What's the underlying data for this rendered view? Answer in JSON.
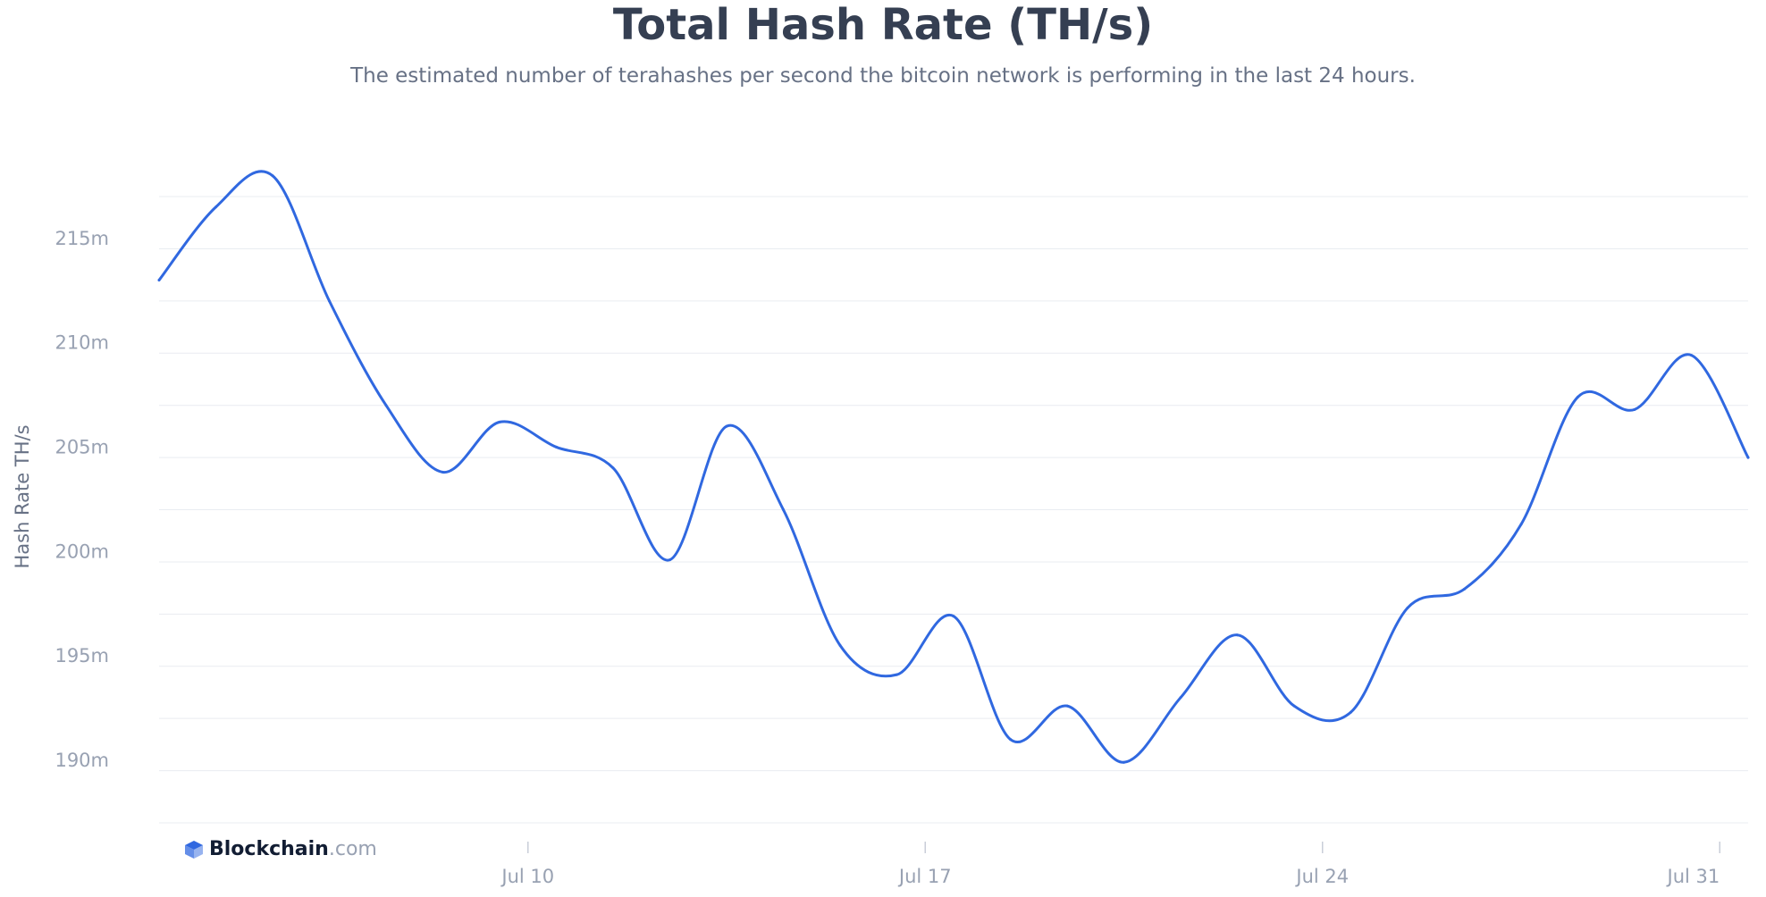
{
  "chart_data": {
    "type": "line",
    "title": "Total Hash Rate (TH/s)",
    "subtitle": "The estimated number of terahashes per second the bitcoin network is performing in the last 24 hours.",
    "ylabel": "Hash Rate TH/s",
    "xlabel": "",
    "ylim": [
      187,
      218.8
    ],
    "y_ticks": [
      190,
      195,
      200,
      205,
      210,
      215
    ],
    "y_tick_labels": [
      "190m",
      "195m",
      "200m",
      "205m",
      "210m",
      "215m"
    ],
    "x_ticks": [
      "Jul 10",
      "Jul 17",
      "Jul 24",
      "Jul 31"
    ],
    "x_range_days": [
      "2020-07-03",
      "2020-07-31"
    ],
    "grid": true,
    "series": [
      {
        "name": "",
        "color": "#3068e0",
        "points": [
          [
            "2020-07-03T12:00",
            213.0
          ],
          [
            "2020-07-04T12:00",
            216.5
          ],
          [
            "2020-07-05T12:00",
            218.0
          ],
          [
            "2020-07-06T12:00",
            212.0
          ],
          [
            "2020-07-07T12:00",
            207.0
          ],
          [
            "2020-07-08T12:00",
            203.8
          ],
          [
            "2020-07-09T12:00",
            206.2
          ],
          [
            "2020-07-10T12:00",
            205.0
          ],
          [
            "2020-07-11T12:00",
            204.0
          ],
          [
            "2020-07-12T12:00",
            199.6
          ],
          [
            "2020-07-13T12:00",
            206.0
          ],
          [
            "2020-07-14T12:00",
            202.0
          ],
          [
            "2020-07-15T12:00",
            195.5
          ],
          [
            "2020-07-16T12:00",
            194.1
          ],
          [
            "2020-07-17T12:00",
            196.9
          ],
          [
            "2020-07-18T12:00",
            191.0
          ],
          [
            "2020-07-19T12:00",
            192.6
          ],
          [
            "2020-07-20T12:00",
            189.9
          ],
          [
            "2020-07-21T12:00",
            193.0
          ],
          [
            "2020-07-22T12:00",
            196.0
          ],
          [
            "2020-07-23T12:00",
            192.6
          ],
          [
            "2020-07-24T12:00",
            192.3
          ],
          [
            "2020-07-25T12:00",
            197.3
          ],
          [
            "2020-07-26T12:00",
            198.2
          ],
          [
            "2020-07-27T12:00",
            201.3
          ],
          [
            "2020-07-28T12:00",
            207.4
          ],
          [
            "2020-07-29T12:00",
            206.8
          ],
          [
            "2020-07-30T12:00",
            209.4
          ],
          [
            "2020-07-31T12:00",
            204.5
          ]
        ]
      }
    ]
  },
  "brand": {
    "name": "Blockchain",
    "domain": ".com",
    "logo_icon": "blockchain-cube-icon",
    "logo_color": "#3068e0"
  }
}
